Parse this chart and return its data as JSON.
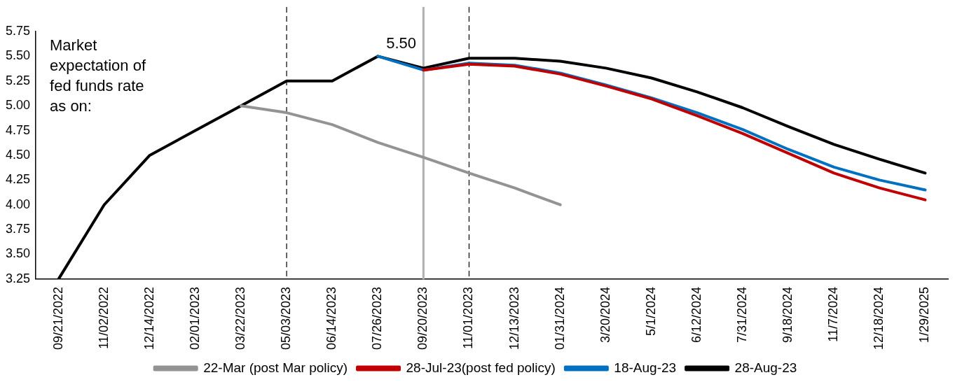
{
  "chart_data": {
    "type": "line",
    "categories": [
      "09/21/2022",
      "11/02/2022",
      "12/14/2022",
      "02/01/2023",
      "03/22/2023",
      "05/03/2023",
      "06/14/2023",
      "07/26/2023",
      "09/20/2023",
      "11/01/2023",
      "12/13/2023",
      "01/31/2024",
      "3/20/2024",
      "5/1/2024",
      "6/12/2024",
      "7/31/2024",
      "9/18/2024",
      "11/7/2024",
      "12/18/2024",
      "1/29/2025"
    ],
    "series": [
      {
        "name": "22-Mar (post Mar policy)",
        "color": "#939393",
        "values": [
          null,
          null,
          null,
          null,
          5.0,
          4.93,
          4.81,
          4.63,
          4.48,
          4.32,
          4.17,
          4.0,
          null,
          null,
          null,
          null,
          null,
          null,
          null,
          null
        ]
      },
      {
        "name": "28-Jul-23(post fed policy)",
        "color": "#c00000",
        "values": [
          null,
          null,
          null,
          null,
          null,
          null,
          null,
          null,
          5.36,
          5.42,
          5.4,
          5.32,
          5.2,
          5.07,
          4.9,
          4.72,
          4.52,
          4.32,
          4.17,
          4.05
        ]
      },
      {
        "name": "18-Aug-23",
        "color": "#0070c0",
        "values": [
          null,
          null,
          null,
          null,
          null,
          null,
          null,
          5.5,
          5.36,
          5.43,
          5.41,
          5.33,
          5.21,
          5.08,
          4.93,
          4.76,
          4.56,
          4.38,
          4.25,
          4.15
        ]
      },
      {
        "name": "28-Aug-23",
        "color": "#000000",
        "values": [
          3.25,
          4.0,
          4.5,
          4.75,
          5.0,
          5.25,
          5.25,
          5.5,
          5.38,
          5.48,
          5.48,
          5.45,
          5.38,
          5.28,
          5.14,
          4.98,
          4.79,
          4.61,
          4.46,
          4.32
        ]
      }
    ],
    "ylim": [
      3.25,
      5.75
    ],
    "yticks": [
      {
        "value": 3.25,
        "label": "3.25"
      },
      {
        "value": 3.5,
        "label": "3.50"
      },
      {
        "value": 3.75,
        "label": "3.75"
      },
      {
        "value": 4,
        "label": "4.00"
      },
      {
        "value": 4.25,
        "label": "4.25"
      },
      {
        "value": 4.5,
        "label": "4.50"
      },
      {
        "value": 4.75,
        "label": "4.75"
      },
      {
        "value": 5,
        "label": "5.00"
      },
      {
        "value": 5.25,
        "label": "5.25"
      },
      {
        "value": 5.5,
        "label": "5.50"
      },
      {
        "value": 5.75,
        "label": "5.75"
      }
    ],
    "ref_lines": [
      {
        "axis": "x",
        "value": "05/03/2023",
        "color": "#000000",
        "line_style": "dashed"
      },
      {
        "axis": "x",
        "value": "09/20/2023",
        "color": "#b0b0b0",
        "line_style": "solid"
      },
      {
        "axis": "x",
        "value": "11/01/2023",
        "color": "#000000",
        "line_style": "dashed"
      }
    ],
    "annotations": [
      "Market expectation of fed funds rate as on:",
      {
        "text": "5.50",
        "x": "07/26/2023",
        "y": 5.5
      }
    ],
    "grid": false,
    "legend": "bottom",
    "marker": "none",
    "line_style": "solid"
  }
}
